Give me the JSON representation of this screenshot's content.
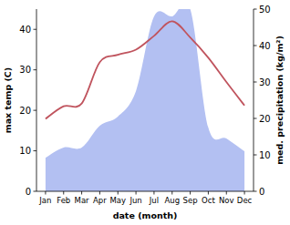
{
  "chart_data": {
    "type": "line",
    "categories": [
      "Jan",
      "Feb",
      "Mar",
      "Apr",
      "May",
      "Jun",
      "Jul",
      "Aug",
      "Sep",
      "Oct",
      "Nov",
      "Dec"
    ],
    "x_label": "date (month)",
    "y_label": "max temp (C)",
    "y2_label": "med. precipitation (kg/m²)",
    "ylim": [
      0,
      45
    ],
    "yticks": [
      0,
      10,
      20,
      30,
      40
    ],
    "y2lim": [
      0,
      50
    ],
    "y2ticks": [
      0,
      10,
      20,
      30,
      40,
      50
    ],
    "series": [
      {
        "type": "area",
        "axis": "y2",
        "color": "#b3c0f2",
        "values": [
          9.2,
          12,
          12,
          18,
          20.5,
          27.5,
          48,
          48,
          50,
          17.5,
          14.5,
          11
        ]
      },
      {
        "type": "line",
        "color": "#c0545e",
        "values": [
          17.9,
          21,
          21.7,
          31.9,
          33.7,
          35,
          38.4,
          42,
          38,
          33,
          27,
          21.2
        ]
      }
    ]
  }
}
